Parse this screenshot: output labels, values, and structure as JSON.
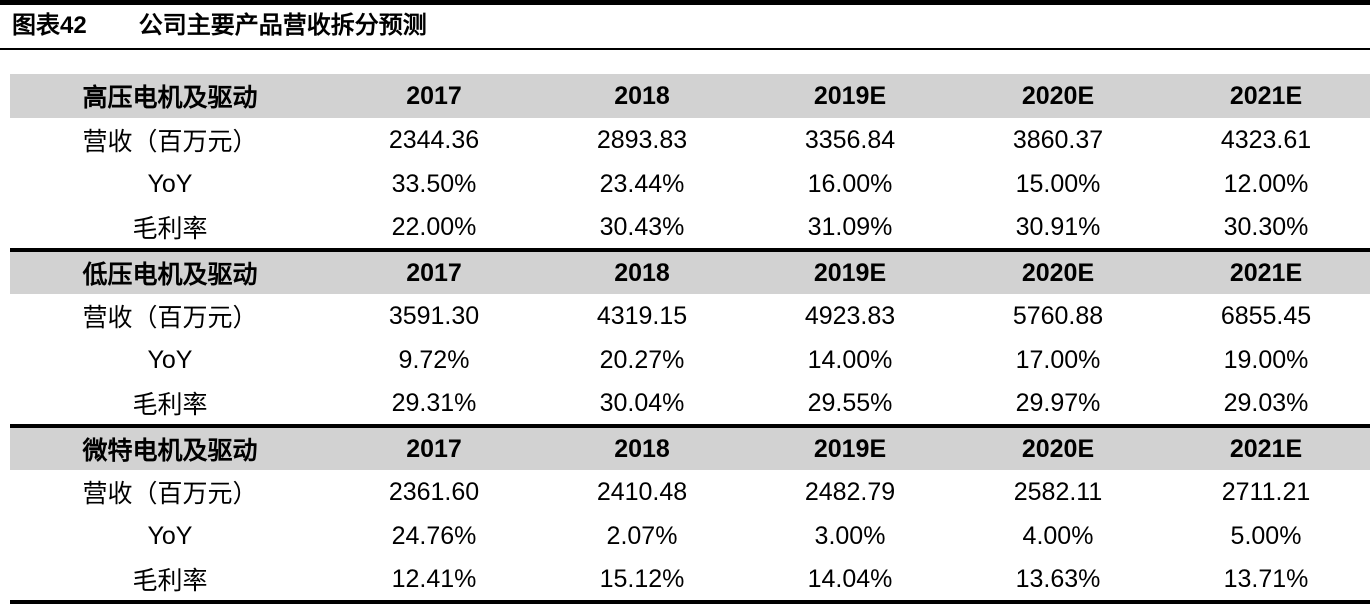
{
  "page": {
    "figure_label": "图表42",
    "figure_title": "公司主要产品营收拆分预测"
  },
  "table": {
    "year_headers": [
      "2017",
      "2018",
      "2019E",
      "2020E",
      "2021E"
    ],
    "sections": [
      {
        "name": "高压电机及驱动",
        "rows": [
          {
            "label": "营收（百万元）",
            "values": [
              "2344.36",
              "2893.83",
              "3356.84",
              "3860.37",
              "4323.61"
            ]
          },
          {
            "label": "YoY",
            "values": [
              "33.50%",
              "23.44%",
              "16.00%",
              "15.00%",
              "12.00%"
            ]
          },
          {
            "label": "毛利率",
            "values": [
              "22.00%",
              "30.43%",
              "31.09%",
              "30.91%",
              "30.30%"
            ]
          }
        ]
      },
      {
        "name": "低压电机及驱动",
        "rows": [
          {
            "label": "营收（百万元）",
            "values": [
              "3591.30",
              "4319.15",
              "4923.83",
              "5760.88",
              "6855.45"
            ]
          },
          {
            "label": "YoY",
            "values": [
              "9.72%",
              "20.27%",
              "14.00%",
              "17.00%",
              "19.00%"
            ]
          },
          {
            "label": "毛利率",
            "values": [
              "29.31%",
              "30.04%",
              "29.55%",
              "29.97%",
              "29.03%"
            ]
          }
        ]
      },
      {
        "name": "微特电机及驱动",
        "rows": [
          {
            "label": "营收（百万元）",
            "values": [
              "2361.60",
              "2410.48",
              "2482.79",
              "2582.11",
              "2711.21"
            ]
          },
          {
            "label": "YoY",
            "values": [
              "24.76%",
              "2.07%",
              "3.00%",
              "4.00%",
              "5.00%"
            ]
          },
          {
            "label": "毛利率",
            "values": [
              "12.41%",
              "15.12%",
              "14.04%",
              "13.63%",
              "13.71%"
            ]
          }
        ]
      }
    ]
  },
  "colors": {
    "section_header_bg": "#d2d2d2",
    "rule_color": "#000000",
    "text_color": "#000000"
  }
}
